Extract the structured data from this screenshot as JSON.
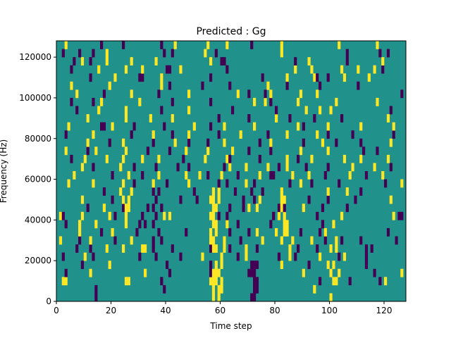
{
  "chart_data": {
    "type": "heatmap",
    "title": "Predicted : Gg",
    "xlabel": "Time step",
    "ylabel": "Frequency (Hz)",
    "xlim": [
      0,
      128
    ],
    "ylim": [
      0,
      128000
    ],
    "n_cols": 128,
    "n_rows": 32,
    "xticks": [
      0,
      20,
      40,
      60,
      80,
      100,
      120
    ],
    "yticks": [
      0,
      20000,
      40000,
      60000,
      80000,
      100000,
      120000
    ],
    "ytick_labels": [
      "0",
      "20000",
      "40000",
      "60000",
      "80000",
      "100000",
      "120000"
    ],
    "colors": {
      "low": "#440154",
      "background": "#21918c",
      "high": "#fde725"
    },
    "background_value": 1,
    "cell_events_note": "each row: 'col:value' pairs; value 0=low, 2=high, others background",
    "rows": [
      "14:0 57:2 59:2 71:0 72:0 100:2",
      "14:0 39:0 57:2 59:2 60:2 72:0 73:0 94:2",
      "2:2 3:2 25:2 26:2 38:0 56:2 57:2 58:2 60:2 72:0 73:0 96:0 101:2 102:2 107:0 118:0 120:2",
      "3:0 12:2 32:2 41:0 56:0 57:2 58:2 59:2 70:0 71:0 72:0 90:2 100:2 103:2 116:0 126:2",
      "9:0 19:2 40:0 56:0 58:2 60:2 71:0 72:0 73:0 82:2 92:0 99:2 101:2 113:0",
      "2:0 10:2 13:0 30:0 36:0 45:0 53:2 60:2 66:0 69:2 81:0 85:2 87:0 96:2 103:0 105:2 113:0",
      "7:0 12:0 18:2 24:2 31:2 32:2 35:0 42:0 56:0 57:2 58:2 61:2 63:0 69:2 73:0 85:2 88:0 95:0 100:2 102:2 113:0 115:0",
      "1:2 8:0 12:2 21:0 27:2 35:0 38:0 56:2 57:2 61:2 67:0 75:2 82:2 86:2 93:2 98:0 102:2 104:0 111:0 124:0",
      "8:2 16:0 20:2 29:0 37:0 47:0 56:2 58:2 63:0 70:0 73:2 80:2 83:2 84:2 89:0 96:0 98:2 121:0",
      "3:0 8:2 14:2 25:2 30:0 32:0 35:0 57:2 58:2 62:2 66:0 78:0 83:2 84:2 97:0 101:2",
      "1:2 2:0 9:2 19:2 21:0 25:2 31:0 36:0 39:2 41:2 56:2 57:2 59:0 62:0 79:0 81:2 83:2 95:0 104:2 123:2 125:0 126:0",
      "11:0 17:2 24:0 25:2 26:2 33:0 35:0 38:0 57:2 58:2 63:0 68:0 70:2 73:2 81:0 82:2 83:0 90:2 97:0 106:0",
      "9:2 20:0 24:2 26:2 36:0 45:0 51:0 56:2 57:2 59:2 68:0 72:0 74:2 82:2 83:2 92:0 99:0 109:0 122:2",
      "17:0 23:2 27:2 35:0 37:0 50:0 57:2 59:2 65:0 71:0 75:0 82:2 99:2 106:2 111:0",
      "4:2 13:2 24:2 28:0 35:2 40:0 48:2 59:0 62:0 69:2 72:0 85:0 89:2 93:0 103:0 120:0 126:2",
      "6:2 20:0 26:2 31:0 37:2 47:2 52:2 55:0 60:2 66:0 74:2 78:0 79:0 86:2 92:2 98:0 107:2 113:0 119:2",
      "9:2 13:0 23:2 28:0 36:0 44:0 48:0 61:0 63:2 69:2 77:2 81:0 84:2 91:0 99:0 108:2 116:2 122:0",
      "5:0 10:2 18:2 24:2 31:2 37:2 46:0 54:2 62:2 63:0 74:0 84:2 88:0 93:2 105:2 111:2 121:2",
      "3:2 11:0 14:2 25:2 33:0 41:0 47:2 55:2 64:2 70:0 78:0 89:2 99:2 112:0 117:0",
      "11:2 19:0 24:2 35:0 43:2 48:0 55:0 61:2 74:0 78:2 90:0 97:2 102:0 111:0 122:2",
      "3:0 13:2 27:0 35:2 42:0 48:2 59:0 67:2 77:0 84:2 95:2 99:0 108:0 123:0",
      "4:2 16:0 17:0 20:2 28:0 39:0 50:2 56:0 61:2 72:2 88:2 90:0 99:2 111:2 123:2",
      "11:2 25:2 34:2 42:2 59:0 70:0 80:2 85:0 94:0 104:0 121:2",
      "7:0 15:2 25:2 38:0 48:2 64:0 80:0 91:2 96:2 100:2 122:0",
      "5:0 13:0 16:2 30:2 42:0 56:0 72:2 76:2 78:0 88:2 102:2 117:2",
      "7:2 17:0 27:2 37:0 48:2 66:2 70:0 76:0 78:2 89:2 95:2 126:0",
      "5:2 19:2 38:2 41:0 53:0 63:0 77:2 84:0 96:0 110:0",
      "12:0 21:2 30:0 31:0 38:2 56:0 75:0 84:2 94:2 95:0 99:0 105:2 114:2",
      "5:0 15:2 25:2 31:2 40:0 41:0 45:2 62:0 87:2 93:2 104:2 110:2 116:2 119:0",
      "6:0 9:2 12:0 18:2 27:2 36:2 56:2 60:0 61:0 87:0 92:2 106:0 119:2",
      "2:0 8:0 13:0 18:2 39:0 42:0 54:2 58:0 82:2 106:0 118:0 121:0",
      "3:2 16:0 24:0 38:0 43:2 55:2 62:2 71:0 82:2 103:2 117:2"
    ]
  }
}
